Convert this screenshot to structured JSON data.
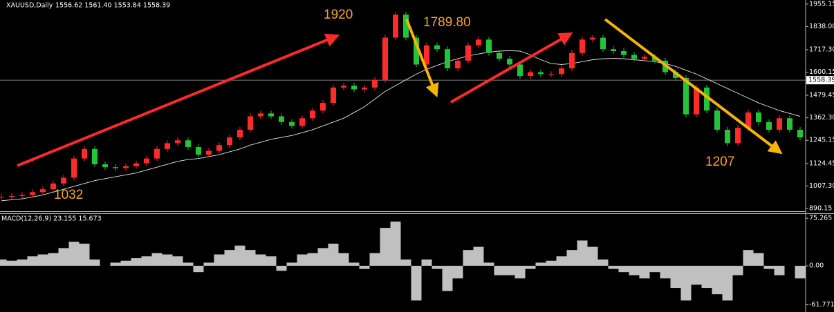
{
  "chart_data": [
    {
      "type": "candlestick",
      "title": "XAUUSD,Daily",
      "subtitle": "1556.62 1561.40 1553.84 1558.39",
      "up_color": "#ff2a2a",
      "down_color": "#22c43a",
      "values": [
        950,
        955,
        960,
        975,
        990,
        1020,
        1050,
        1150,
        1200,
        1120,
        1105,
        1100,
        1110,
        1125,
        1150,
        1200,
        1230,
        1245,
        1210,
        1170,
        1190,
        1220,
        1260,
        1300,
        1370,
        1385,
        1370,
        1340,
        1320,
        1360,
        1400,
        1440,
        1520,
        1530,
        1510,
        1520,
        1560,
        1780,
        1900,
        1780,
        1640,
        1740,
        1720,
        1620,
        1660,
        1740,
        1770,
        1700,
        1670,
        1640,
        1580,
        1600,
        1590,
        1590,
        1620,
        1700,
        1770,
        1780,
        1720,
        1710,
        1690,
        1670,
        1680,
        1660,
        1600,
        1570,
        1380,
        1520,
        1400,
        1300,
        1230,
        1310,
        1390,
        1340,
        1300,
        1360,
        1300,
        1260
      ],
      "ma": {
        "color": "#e8e8e8",
        "values": [
          930,
          935,
          940,
          950,
          960,
          975,
          990,
          1005,
          1020,
          1035,
          1045,
          1055,
          1065,
          1075,
          1090,
          1105,
          1120,
          1135,
          1145,
          1150,
          1160,
          1170,
          1185,
          1200,
          1220,
          1235,
          1250,
          1260,
          1270,
          1285,
          1300,
          1320,
          1340,
          1360,
          1390,
          1420,
          1460,
          1500,
          1530,
          1560,
          1590,
          1615,
          1635,
          1655,
          1670,
          1685,
          1695,
          1705,
          1710,
          1712,
          1710,
          1690,
          1665,
          1645,
          1640,
          1645,
          1655,
          1665,
          1670,
          1672,
          1670,
          1665,
          1660,
          1655,
          1645,
          1630,
          1610,
          1590,
          1565,
          1540,
          1515,
          1490,
          1465,
          1440,
          1420,
          1400,
          1385,
          1370
        ]
      },
      "last_price": 1558.39,
      "ylim": [
        879,
        1969
      ],
      "yticks": [
        1955.15,
        {
          "value": 1838,
          "label": "1838.00"
        },
        {
          "value": 1717.3,
          "label": "1717.30"
        },
        1600.15,
        1479.45,
        {
          "value": 1362.3,
          "label": "1362.30"
        },
        1245.15,
        1124.45,
        {
          "value": 1007.3,
          "label": "1007.30"
        },
        890.15
      ],
      "annotations": [
        "1920",
        "1789.80",
        "1032",
        "1207"
      ]
    },
    {
      "type": "macd",
      "title": "MACD(12,26,9) 23.155 15.673",
      "color": "#c0c0c0",
      "values": [
        10,
        8,
        10,
        15,
        18,
        20,
        28,
        38,
        35,
        10,
        0,
        5,
        8,
        12,
        15,
        20,
        18,
        15,
        5,
        -10,
        5,
        18,
        25,
        32,
        25,
        18,
        15,
        -8,
        5,
        18,
        20,
        28,
        35,
        20,
        5,
        -5,
        20,
        60,
        70,
        10,
        -55,
        10,
        -5,
        -40,
        -20,
        25,
        30,
        5,
        -15,
        -15,
        -20,
        -5,
        5,
        8,
        15,
        25,
        40,
        30,
        10,
        -5,
        -10,
        -15,
        -20,
        -10,
        -20,
        -35,
        -55,
        -30,
        -35,
        -45,
        -55,
        -15,
        25,
        20,
        -5,
        -15,
        0,
        -20
      ],
      "ylim": [
        -71,
        82
      ],
      "yticks": [
        75.265,
        {
          "value": 0,
          "label": "0.00"
        },
        -61.771
      ]
    }
  ]
}
